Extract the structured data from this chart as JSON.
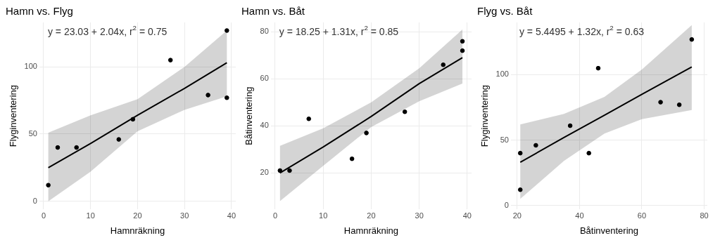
{
  "chart_data": [
    {
      "type": "scatter",
      "title": "Hamn vs. Flyg",
      "xlabel": "Hamnräkning",
      "ylabel": "Flyginventering",
      "annotations": [
        "y = 23.03 + 2.04x, r$^{2}$ = 0.75"
      ],
      "xlim": [
        -0.9,
        40.9
      ],
      "xticks": [
        0,
        10,
        20,
        30,
        40
      ],
      "ylim": [
        -6,
        133
      ],
      "yticks": [
        0,
        50,
        100
      ],
      "grid": true,
      "series": [
        {
          "type": "line",
          "marker": "none",
          "color": "#000000",
          "x": [
            1,
            10,
            20,
            30,
            39
          ],
          "values": [
            25,
            43,
            64,
            84,
            103
          ],
          "lower": [
            0,
            22,
            52,
            68,
            78
          ],
          "upper": [
            51,
            64,
            76,
            100,
            127
          ]
        },
        {
          "type": "scatter",
          "marker": "circle",
          "color": "#000000",
          "x": [
            1,
            3,
            7,
            16,
            19,
            27,
            35,
            39,
            39
          ],
          "values": [
            12,
            40,
            40,
            46,
            61,
            105,
            79,
            127,
            77
          ]
        }
      ]
    },
    {
      "type": "scatter",
      "title": "Hamn vs. Båt",
      "xlabel": "Hamnräkning",
      "ylabel": "Båtinventering",
      "annotations": [
        "y = 18.25 + 1.31x, r$^{2}$ = 0.85"
      ],
      "xlim": [
        -0.9,
        40.9
      ],
      "xticks": [
        0,
        10,
        20,
        30,
        40
      ],
      "ylim": [
        4.5,
        84
      ],
      "yticks": [
        20,
        40,
        60,
        80
      ],
      "grid": true,
      "series": [
        {
          "type": "line",
          "marker": "none",
          "color": "#000000",
          "x": [
            1,
            10,
            20,
            30,
            39
          ],
          "values": [
            20,
            31,
            44,
            58,
            69
          ],
          "lower": [
            8,
            23,
            39.5,
            50.5,
            58
          ],
          "upper": [
            31.5,
            39,
            50,
            64.5,
            81
          ]
        },
        {
          "type": "scatter",
          "marker": "circle",
          "color": "#000000",
          "x": [
            1,
            3,
            7,
            16,
            19,
            27,
            35,
            39,
            39
          ],
          "values": [
            21,
            21,
            43,
            26,
            37,
            46,
            66,
            76,
            72
          ]
        }
      ]
    },
    {
      "type": "scatter",
      "title": "Flyg vs. Båt",
      "xlabel": "Båtinventering",
      "ylabel": "Flyginventering",
      "annotations": [
        "y = 5.4495 + 1.32x, r$^{2}$ = 0.63"
      ],
      "xlim": [
        18,
        81
      ],
      "xticks": [
        20,
        40,
        60,
        80
      ],
      "ylim": [
        -3,
        140
      ],
      "yticks": [
        0,
        50,
        100
      ],
      "grid": true,
      "series": [
        {
          "type": "line",
          "marker": "none",
          "color": "#000000",
          "x": [
            21,
            35,
            48,
            60,
            76
          ],
          "values": [
            33,
            52,
            69,
            85,
            106
          ],
          "lower": [
            5,
            34,
            55,
            66,
            73
          ],
          "upper": [
            62,
            70,
            83,
            104,
            138
          ]
        },
        {
          "type": "scatter",
          "marker": "circle",
          "color": "#000000",
          "x": [
            21,
            21,
            26,
            37,
            43,
            46,
            66,
            72,
            76
          ],
          "values": [
            12,
            40,
            46,
            61,
            40,
            105,
            79,
            77,
            127
          ]
        }
      ]
    }
  ]
}
